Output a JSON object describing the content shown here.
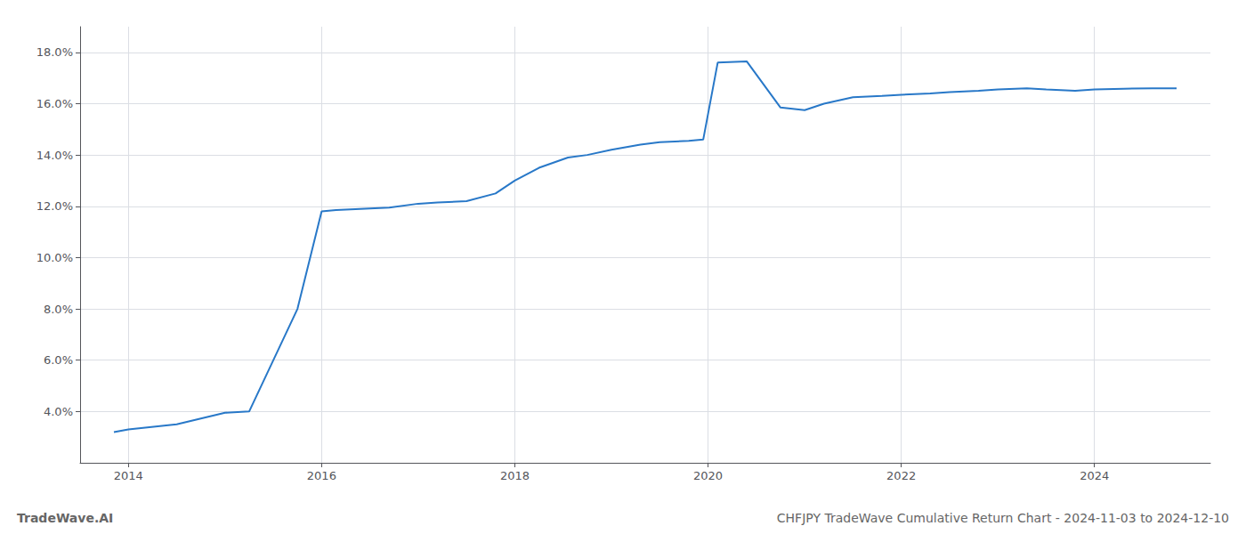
{
  "chart_data": {
    "type": "line",
    "title": "CHFJPY TradeWave Cumulative Return Chart - 2024-11-03 to 2024-12-10",
    "annotations": [
      {
        "text": "TradeWave.AI"
      }
    ],
    "color": "#2878c8",
    "x": [
      2013.85,
      2014.0,
      2014.5,
      2015.0,
      2015.25,
      2015.75,
      2016.0,
      2016.15,
      2016.4,
      2016.7,
      2017.0,
      2017.2,
      2017.5,
      2017.8,
      2018.0,
      2018.25,
      2018.55,
      2018.75,
      2019.0,
      2019.3,
      2019.5,
      2019.8,
      2019.95,
      2020.1,
      2020.4,
      2020.75,
      2021.0,
      2021.2,
      2021.5,
      2021.8,
      2022.0,
      2022.3,
      2022.5,
      2022.8,
      2023.0,
      2023.3,
      2023.5,
      2023.8,
      2024.0,
      2024.3,
      2024.6,
      2024.85
    ],
    "values": [
      3.2,
      3.3,
      3.5,
      3.95,
      4.0,
      8.0,
      11.8,
      11.85,
      11.9,
      11.95,
      12.1,
      12.15,
      12.2,
      12.5,
      13.0,
      13.5,
      13.9,
      14.0,
      14.2,
      14.4,
      14.5,
      14.55,
      14.6,
      17.6,
      17.65,
      15.85,
      15.75,
      16.0,
      16.25,
      16.3,
      16.35,
      16.4,
      16.45,
      16.5,
      16.55,
      16.6,
      16.55,
      16.5,
      16.55,
      16.58,
      16.6,
      16.6
    ],
    "xlim": [
      2013.5,
      2025.2
    ],
    "ylim": [
      2.0,
      19.0
    ],
    "xticks": [
      2014,
      2016,
      2018,
      2020,
      2022,
      2024
    ],
    "yticks": [
      {
        "value": 4.0,
        "label": "4.0%"
      },
      {
        "value": 6.0,
        "label": "6.0%"
      },
      {
        "value": 8.0,
        "label": "8.0%"
      },
      {
        "value": 10.0,
        "label": "10.0%"
      },
      {
        "value": 12.0,
        "label": "12.0%"
      },
      {
        "value": 14.0,
        "label": "14.0%"
      },
      {
        "value": 16.0,
        "label": "16.0%"
      },
      {
        "value": 18.0,
        "label": "18.0%"
      }
    ],
    "grid": true
  }
}
